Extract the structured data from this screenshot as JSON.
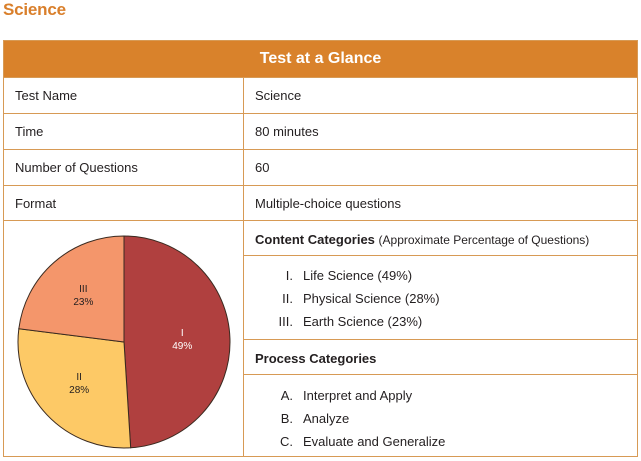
{
  "page_title": "Science",
  "table": {
    "header": "Test at a Glance",
    "rows": [
      {
        "label": "Test Name",
        "value": "Science"
      },
      {
        "label": "Time",
        "value": "80 minutes"
      },
      {
        "label": "Number of Questions",
        "value": "60"
      },
      {
        "label": "Format",
        "value": "Multiple-choice questions"
      }
    ],
    "content_categories": {
      "title": "Content Categories",
      "subtitle": "(Approximate Percentage of Questions)",
      "items": [
        {
          "num": "I.",
          "text": "Life Science (49%)"
        },
        {
          "num": "II.",
          "text": "Physical Science (28%)"
        },
        {
          "num": "III.",
          "text": "Earth Science (23%)"
        }
      ]
    },
    "process_categories": {
      "title": "Process Categories",
      "items": [
        {
          "num": "A.",
          "text": "Interpret and Apply"
        },
        {
          "num": "B.",
          "text": "Analyze"
        },
        {
          "num": "C.",
          "text": "Evaluate and Generalize"
        }
      ]
    }
  },
  "chart_data": {
    "type": "pie",
    "title": "",
    "categories": [
      "I",
      "II",
      "III"
    ],
    "values": [
      49,
      28,
      23
    ],
    "labels": [
      "49%",
      "28%",
      "23%"
    ],
    "colors": [
      "#b0403f",
      "#fdc966",
      "#f4966b"
    ],
    "legend": "none"
  },
  "colors": {
    "accent": "#d9822b",
    "border": "#d79a55",
    "title": "#d97f2b"
  }
}
